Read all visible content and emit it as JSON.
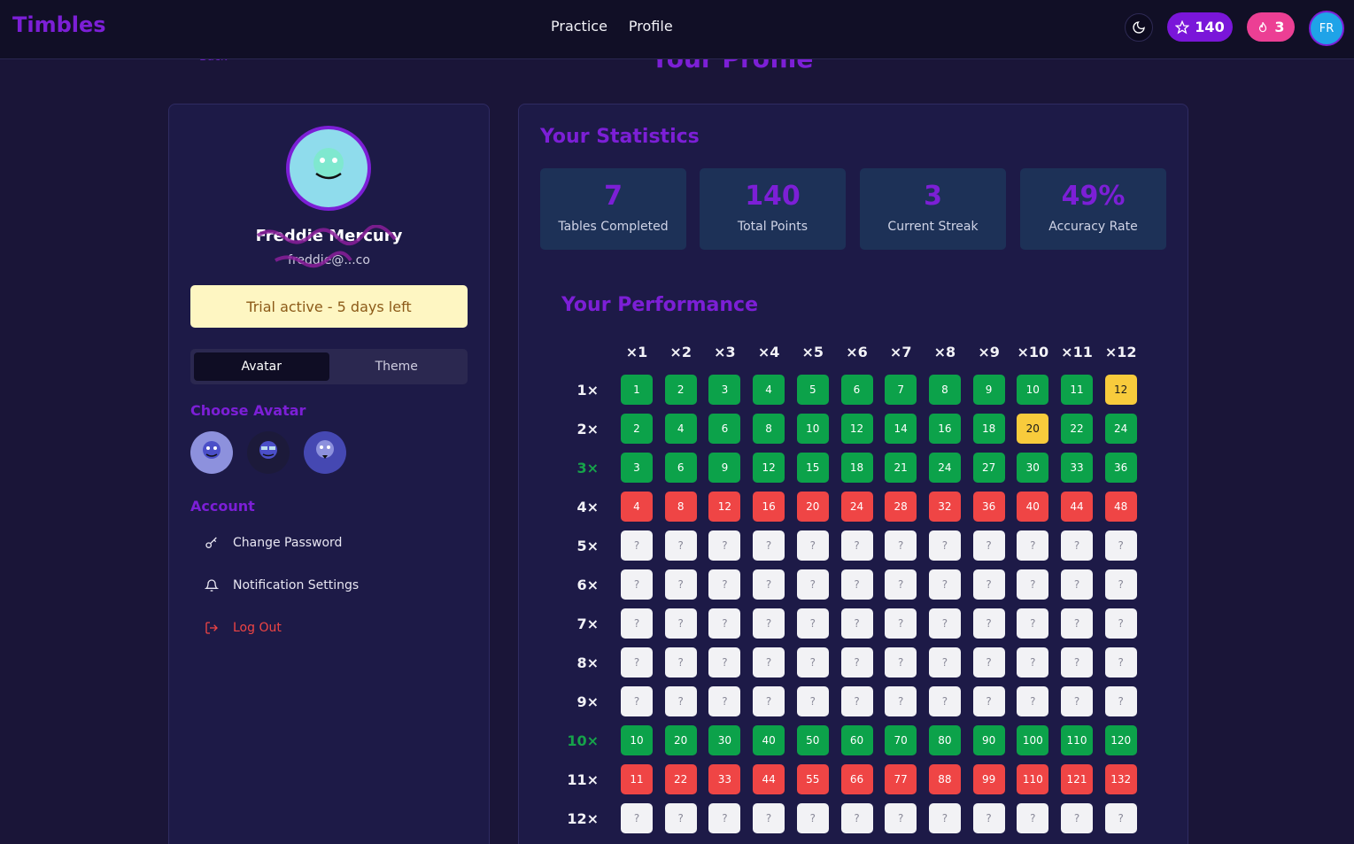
{
  "nav": {
    "brand": "Timbles",
    "links": [
      "Practice",
      "Profile"
    ],
    "points": "140",
    "streak": "3",
    "user_initials": "FR"
  },
  "page": {
    "back_label": "← Back",
    "title": "Your Profile"
  },
  "profile": {
    "name": "Freddie Mercury",
    "email": "freddie@...co",
    "trial_text": "Trial active - 5 days left",
    "tabs": [
      "Avatar",
      "Theme"
    ],
    "active_tab": "Avatar",
    "choose_avatar_label": "Choose Avatar",
    "avatar_colors": [
      "#8d91dd",
      "#1c1a3a",
      "#4548b2"
    ],
    "account_label": "Account",
    "account_items": [
      {
        "label": "Change Password",
        "icon": "key-icon"
      },
      {
        "label": "Notification Settings",
        "icon": "bell-icon"
      },
      {
        "label": "Log Out",
        "icon": "logout-icon"
      }
    ]
  },
  "stats": {
    "title": "Your Statistics",
    "items": [
      {
        "value": "7",
        "label": "Tables Completed"
      },
      {
        "value": "140",
        "label": "Total Points"
      },
      {
        "value": "3",
        "label": "Current Streak"
      },
      {
        "value": "49%",
        "label": "Accuracy Rate"
      }
    ]
  },
  "performance": {
    "title": "Your Performance",
    "columns": [
      "×1",
      "×2",
      "×3",
      "×4",
      "×5",
      "×6",
      "×7",
      "×8",
      "×9",
      "×10",
      "×11",
      "×12"
    ],
    "rows": [
      {
        "label": "1×",
        "completed": false,
        "status": "gggggggggggy"
      },
      {
        "label": "2×",
        "completed": false,
        "status": "gggggggggygg"
      },
      {
        "label": "3×",
        "completed": true,
        "status": "gggggggggggg"
      },
      {
        "label": "4×",
        "completed": false,
        "status": "rrrrrrrrrrrr"
      },
      {
        "label": "5×",
        "completed": false,
        "status": "uuuuuuuuuuuu"
      },
      {
        "label": "6×",
        "completed": false,
        "status": "uuuuuuuuuuuu"
      },
      {
        "label": "7×",
        "completed": false,
        "status": "uuuuuuuuuuuu"
      },
      {
        "label": "8×",
        "completed": false,
        "status": "uuuuuuuuuuuu"
      },
      {
        "label": "9×",
        "completed": false,
        "status": "uuuuuuuuuuuu"
      },
      {
        "label": "10×",
        "completed": true,
        "status": "gggggggggggg"
      },
      {
        "label": "11×",
        "completed": false,
        "status": "rrrrrrrrrrrr"
      },
      {
        "label": "12×",
        "completed": false,
        "status": "uuuuuuuuuuuu"
      }
    ],
    "unknown_label": "?"
  }
}
